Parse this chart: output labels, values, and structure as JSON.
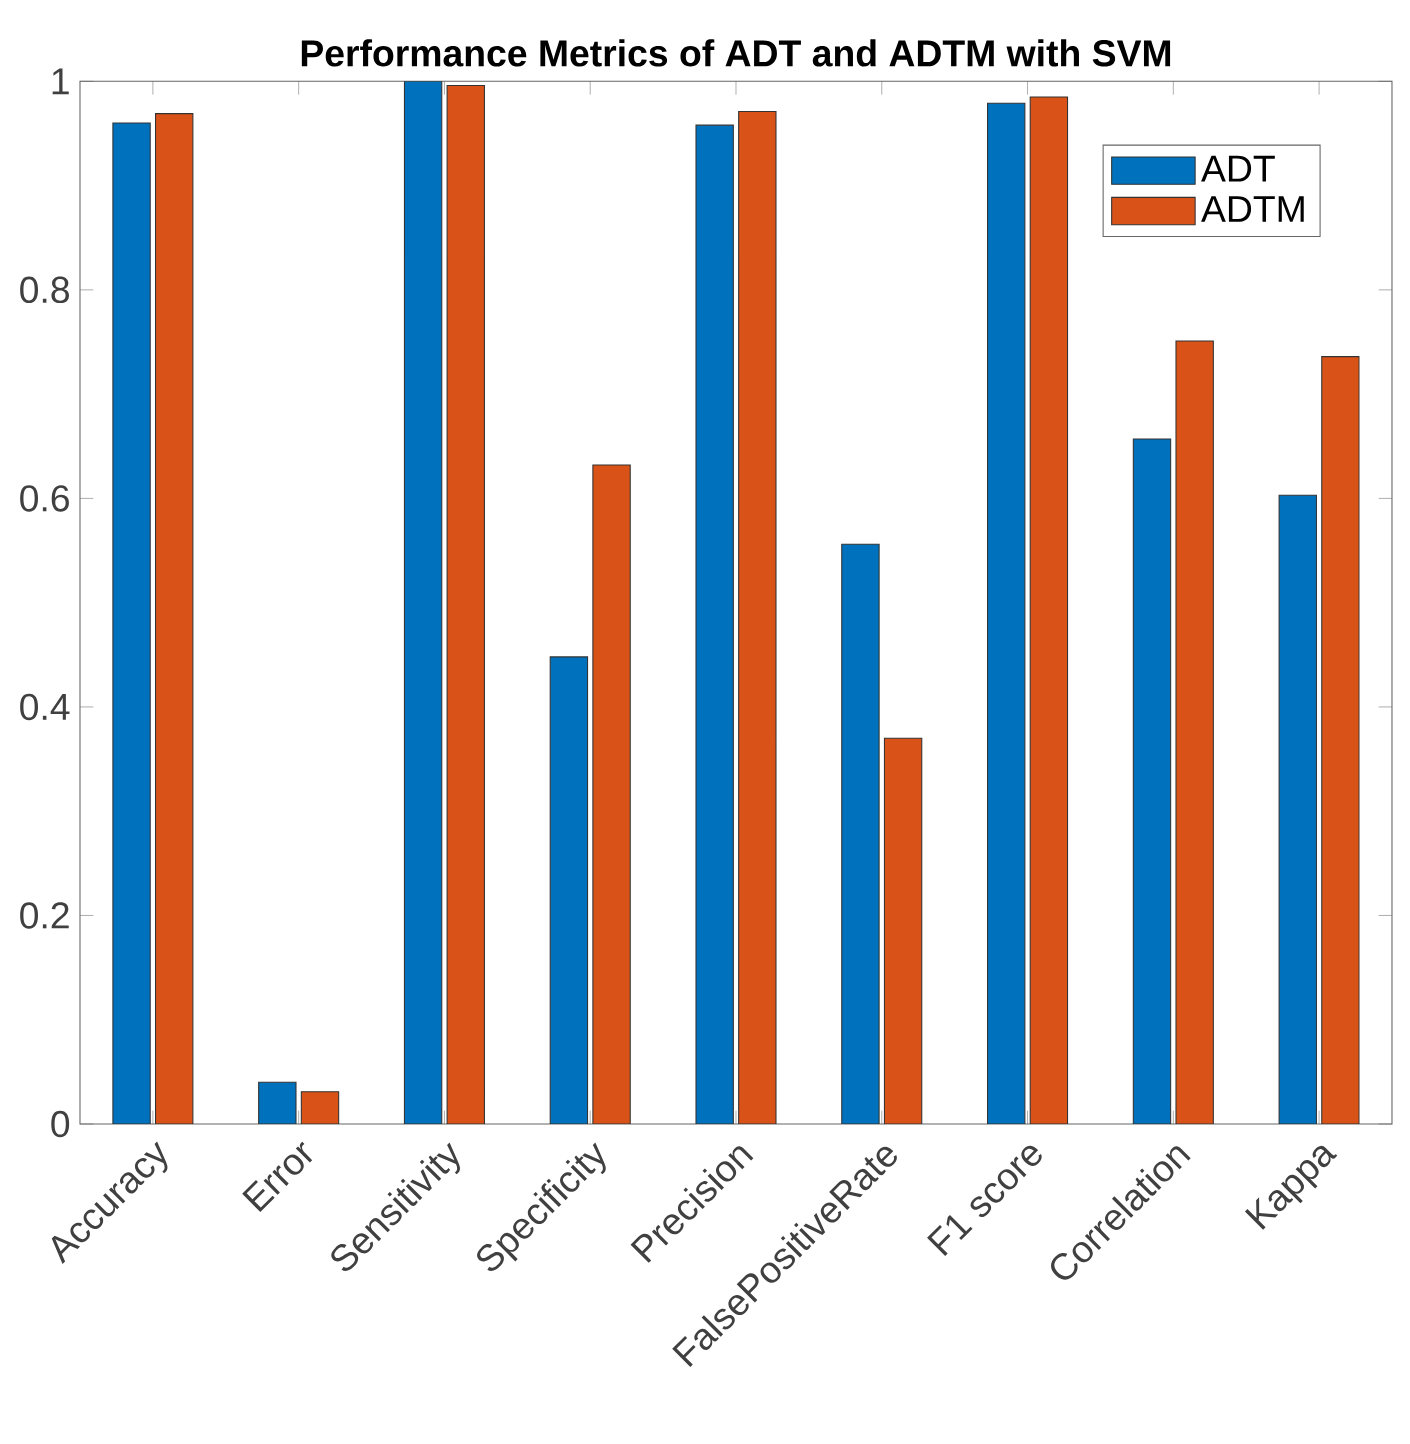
{
  "chart_data": {
    "type": "bar",
    "title": "Performance Metrics of ADT and ADTM with SVM",
    "categories": [
      "Accuracy",
      "Error",
      "Sensitivity",
      "Specificity",
      "Precision",
      "FalsePositiveRate",
      "F1 score",
      "Correlation",
      "Kappa"
    ],
    "series": [
      {
        "name": "ADT",
        "color": "#0072bd",
        "values": [
          0.96,
          0.04,
          1.0,
          0.448,
          0.958,
          0.556,
          0.979,
          0.657,
          0.603
        ]
      },
      {
        "name": "ADTM",
        "color": "#d95319",
        "values": [
          0.969,
          0.031,
          0.996,
          0.632,
          0.971,
          0.37,
          0.985,
          0.751,
          0.736
        ]
      }
    ],
    "ylim": [
      0,
      1
    ],
    "yticks": [
      0,
      0.2,
      0.4,
      0.6,
      0.8,
      1
    ],
    "grid": false,
    "legend": "top right"
  }
}
